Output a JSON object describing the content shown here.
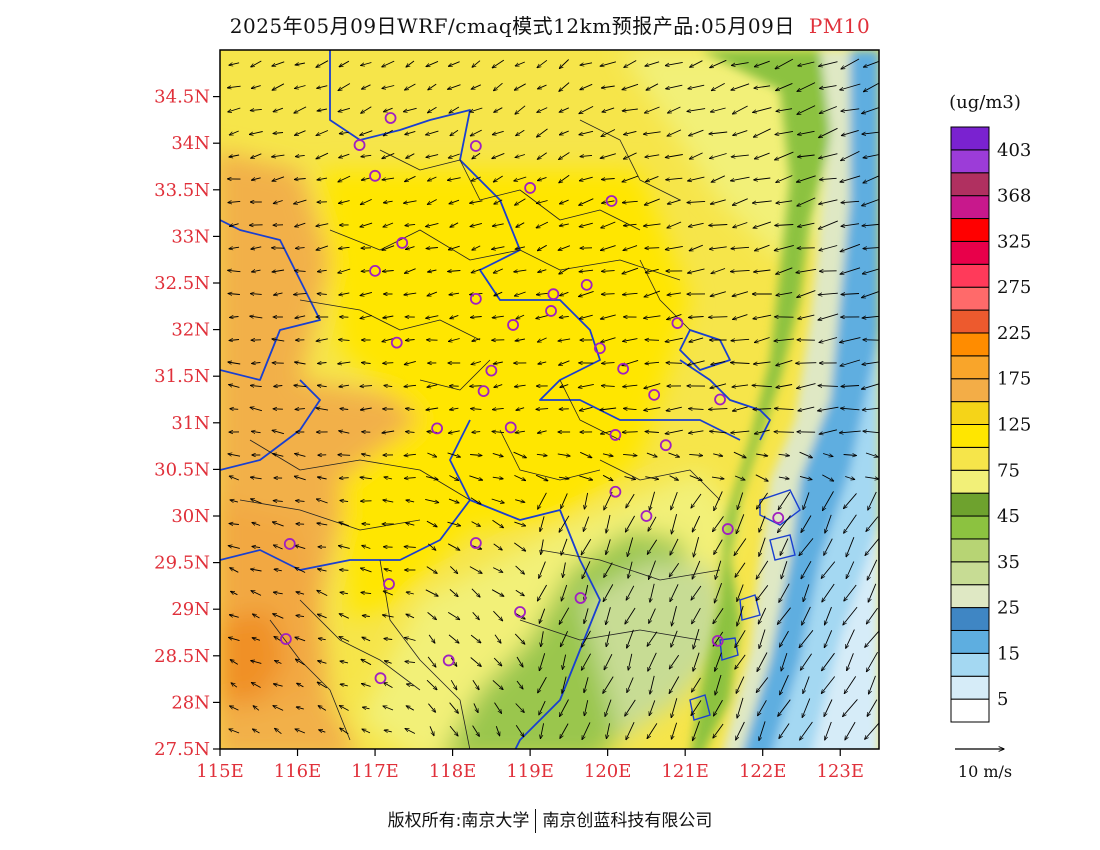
{
  "header": {
    "title": "2025年05月09日WRF/cmaq模式12km预报产品:05月09日",
    "pollutant": "PM10"
  },
  "map": {
    "lon_range": [
      115,
      123.5
    ],
    "lat_range": [
      27.5,
      35
    ],
    "x_ticks": [
      {
        "value": 115,
        "label": "115E"
      },
      {
        "value": 116,
        "label": "116E"
      },
      {
        "value": 117,
        "label": "117E"
      },
      {
        "value": 118,
        "label": "118E"
      },
      {
        "value": 119,
        "label": "119E"
      },
      {
        "value": 120,
        "label": "120E"
      },
      {
        "value": 121,
        "label": "121E"
      },
      {
        "value": 122,
        "label": "122E"
      },
      {
        "value": 123,
        "label": "123E"
      }
    ],
    "y_ticks": [
      {
        "value": 27.5,
        "label": "27.5N"
      },
      {
        "value": 28,
        "label": "28N"
      },
      {
        "value": 28.5,
        "label": "28.5N"
      },
      {
        "value": 29,
        "label": "29N"
      },
      {
        "value": 29.5,
        "label": "29.5N"
      },
      {
        "value": 30,
        "label": "30N"
      },
      {
        "value": 30.5,
        "label": "30.5N"
      },
      {
        "value": 31,
        "label": "31N"
      },
      {
        "value": 31.5,
        "label": "31.5N"
      },
      {
        "value": 32,
        "label": "32N"
      },
      {
        "value": 32.5,
        "label": "32.5N"
      },
      {
        "value": 33,
        "label": "33N"
      },
      {
        "value": 33.5,
        "label": "33.5N"
      },
      {
        "value": 34,
        "label": "34N"
      },
      {
        "value": 34.5,
        "label": "34.5N"
      }
    ],
    "tick_color": "#e0303a",
    "city_marker_color": "#a020c0",
    "boundary_color": "#1a3fd0",
    "cities": [
      {
        "lon": 117.2,
        "lat": 34.27
      },
      {
        "lon": 116.8,
        "lat": 33.98
      },
      {
        "lon": 118.3,
        "lat": 33.97
      },
      {
        "lon": 117.0,
        "lat": 33.65
      },
      {
        "lon": 119.0,
        "lat": 33.52
      },
      {
        "lon": 120.05,
        "lat": 33.38
      },
      {
        "lon": 117.35,
        "lat": 32.93
      },
      {
        "lon": 117.0,
        "lat": 32.63
      },
      {
        "lon": 119.73,
        "lat": 32.48
      },
      {
        "lon": 119.3,
        "lat": 32.38
      },
      {
        "lon": 118.3,
        "lat": 32.33
      },
      {
        "lon": 119.27,
        "lat": 32.2
      },
      {
        "lon": 118.78,
        "lat": 32.05
      },
      {
        "lon": 120.9,
        "lat": 32.07
      },
      {
        "lon": 117.28,
        "lat": 31.86
      },
      {
        "lon": 119.9,
        "lat": 31.8
      },
      {
        "lon": 118.5,
        "lat": 31.56
      },
      {
        "lon": 120.2,
        "lat": 31.58
      },
      {
        "lon": 118.4,
        "lat": 31.34
      },
      {
        "lon": 120.6,
        "lat": 31.3
      },
      {
        "lon": 121.45,
        "lat": 31.25
      },
      {
        "lon": 117.8,
        "lat": 30.94
      },
      {
        "lon": 118.75,
        "lat": 30.95
      },
      {
        "lon": 120.1,
        "lat": 30.87
      },
      {
        "lon": 120.75,
        "lat": 30.76
      },
      {
        "lon": 120.1,
        "lat": 30.26
      },
      {
        "lon": 120.5,
        "lat": 30.0
      },
      {
        "lon": 121.55,
        "lat": 29.86
      },
      {
        "lon": 122.2,
        "lat": 29.98
      },
      {
        "lon": 115.9,
        "lat": 29.7
      },
      {
        "lon": 118.3,
        "lat": 29.71
      },
      {
        "lon": 117.18,
        "lat": 29.27
      },
      {
        "lon": 119.65,
        "lat": 29.12
      },
      {
        "lon": 118.87,
        "lat": 28.97
      },
      {
        "lon": 121.42,
        "lat": 28.66
      },
      {
        "lon": 115.85,
        "lat": 28.68
      },
      {
        "lon": 117.95,
        "lat": 28.45
      },
      {
        "lon": 117.07,
        "lat": 28.26
      }
    ]
  },
  "legend": {
    "unit": "(ug/m3)",
    "colors": [
      "#ffffff",
      "#d6ecf8",
      "#a4d8f2",
      "#5eaee0",
      "#3f86c4",
      "#dfe8c4",
      "#c7dc94",
      "#b7d474",
      "#8cc240",
      "#6ea22e",
      "#f2f078",
      "#f6e54a",
      "#ffe600",
      "#f5d418",
      "#f3ad47",
      "#f9a52a",
      "#ff8c00",
      "#ed5a2e",
      "#ff6a6a",
      "#ff3a5a",
      "#e8004a",
      "#ff0000",
      "#c8188c",
      "#b03060",
      "#9c3cd8",
      "#7a22d0"
    ],
    "labels": [
      "5",
      "15",
      "25",
      "35",
      "45",
      "75",
      "125",
      "175",
      "225",
      "275",
      "325",
      "368",
      "403"
    ],
    "scale_label": "10 m/s"
  },
  "footer": {
    "left": "版权所有:南京大学",
    "right": "南京创蓝科技有限公司"
  }
}
